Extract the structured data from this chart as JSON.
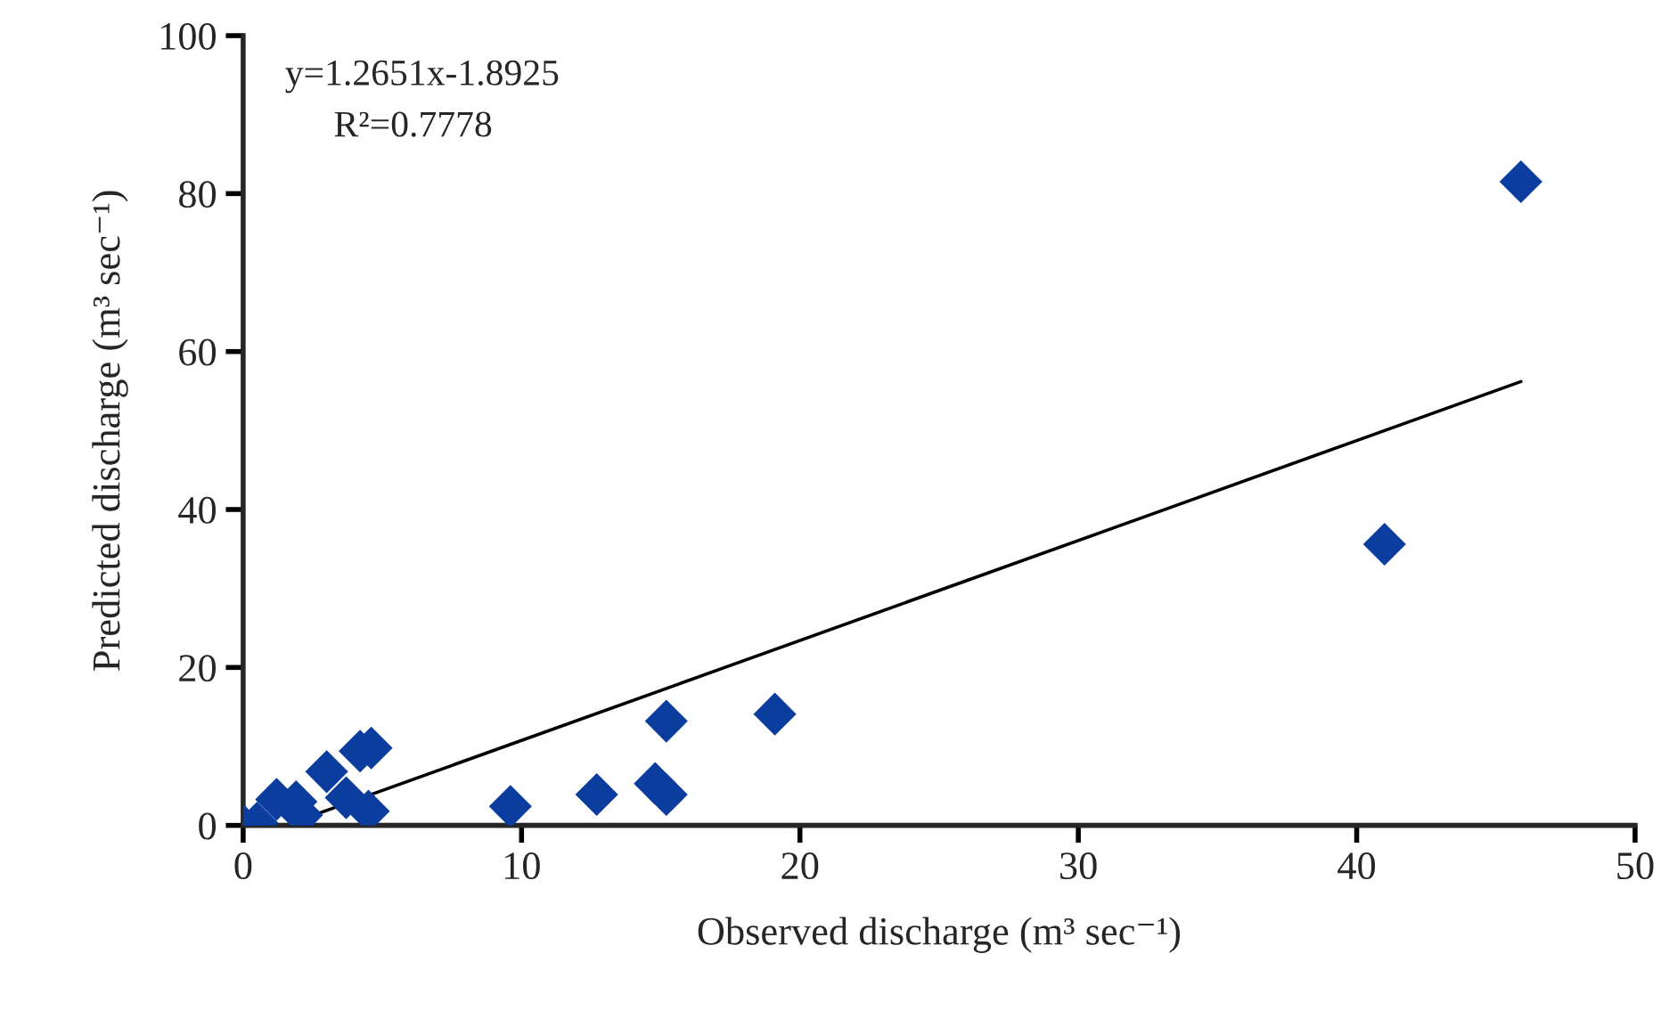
{
  "chart_data": {
    "type": "scatter",
    "xlabel": "Observed discharge (m³ sec⁻¹)",
    "ylabel": "Predicted discharge (m³ sec⁻¹)",
    "annotations": [
      "y=1.2651x-1.8925",
      "R²=0.7778"
    ],
    "xlim": [
      0,
      50
    ],
    "ylim": [
      0,
      100
    ],
    "xticks": [
      0,
      10,
      20,
      30,
      40,
      50
    ],
    "yticks": [
      0,
      20,
      40,
      60,
      80,
      100
    ],
    "grid": false,
    "marker": "diamond",
    "series": [
      {
        "color": "#0b3d9e",
        "x": [
          0,
          0.5,
          1.2,
          1.9,
          2.1,
          3.0,
          3.7,
          4.2,
          4.5,
          4.6,
          9.6,
          12.7,
          14.8,
          15.2,
          15.2,
          19.1,
          41.0,
          45.9
        ],
        "values": [
          0,
          0.3,
          3.3,
          3.0,
          1.3,
          6.8,
          3.5,
          9.4,
          1.8,
          9.8,
          2.4,
          3.9,
          5.3,
          3.9,
          13.2,
          14.1,
          35.6,
          81.5
        ]
      },
      {
        "type": "line",
        "color": "#000000",
        "x": [
          1.5,
          45.9
        ],
        "values": [
          0,
          56.2
        ],
        "marker": "none",
        "line_style": "solid"
      }
    ]
  }
}
